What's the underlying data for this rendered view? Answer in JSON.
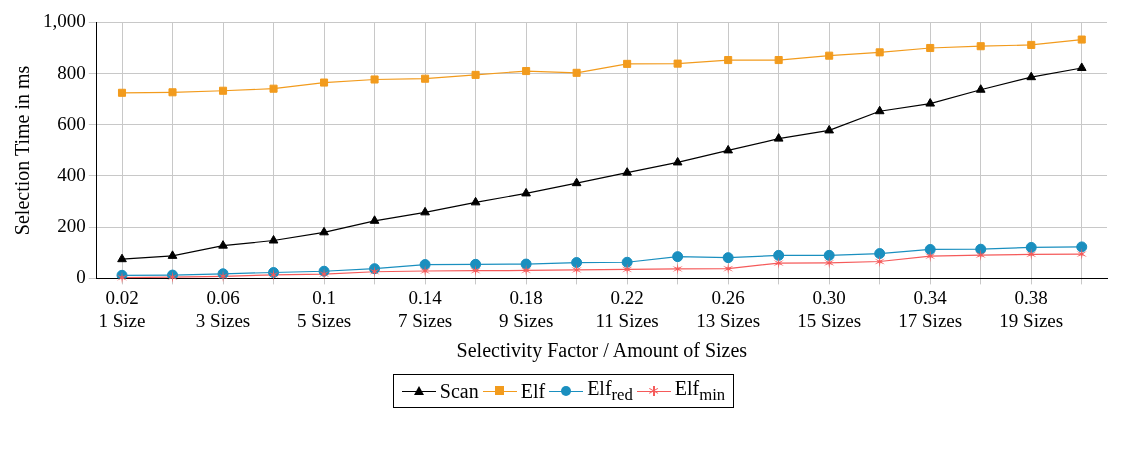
{
  "chart_data": {
    "type": "line",
    "xlabel": "Selectivity Factor / Amount of Sizes",
    "ylabel": "Selection Time in ms",
    "categories": [
      "0.02\n1 Size",
      null,
      "0.06\n3 Sizes",
      null,
      "0.1\n5 Sizes",
      null,
      "0.14\n7 Sizes",
      null,
      "0.18\n9 Sizes",
      null,
      "0.22\n11 Sizes",
      null,
      "0.26\n13 Sizes",
      null,
      "0.30\n15 Sizes",
      null,
      "0.34\n17 Sizes",
      null,
      "0.38\n19 Sizes",
      null
    ],
    "series": [
      {
        "name": "Scan",
        "color": "#000000",
        "marker": "triangle",
        "values": [
          75,
          88,
          128,
          148,
          180,
          225,
          258,
          297,
          332,
          372,
          413,
          453,
          500,
          546,
          578,
          653,
          683,
          737,
          786,
          822
        ]
      },
      {
        "name": "Elf",
        "color": "#f29b1d",
        "marker": "square",
        "values": [
          725,
          727,
          733,
          741,
          765,
          777,
          780,
          795,
          810,
          803,
          838,
          839,
          853,
          853,
          870,
          883,
          900,
          907,
          912,
          933
        ]
      },
      {
        "name": "Elf$_{red}$",
        "color": "#1a8fbf",
        "marker": "circle",
        "values": [
          12,
          13,
          18,
          23,
          28,
          38,
          54,
          55,
          56,
          62,
          63,
          85,
          81,
          90,
          90,
          97,
          113,
          114,
          121,
          123
        ]
      },
      {
        "name": "Elf$_{min}$",
        "color": "#f55a5a",
        "marker": "cross",
        "values": [
          3,
          5,
          8,
          14,
          17,
          26,
          29,
          30,
          31,
          33,
          35,
          37,
          38,
          60,
          61,
          66,
          87,
          91,
          94,
          95
        ]
      }
    ],
    "ylim": [
      0,
      1000
    ],
    "yticks": [
      0,
      200,
      400,
      600,
      800,
      {
        "value": 1000,
        "label": "1,000"
      }
    ],
    "grid": true,
    "legend": "bottom"
  }
}
